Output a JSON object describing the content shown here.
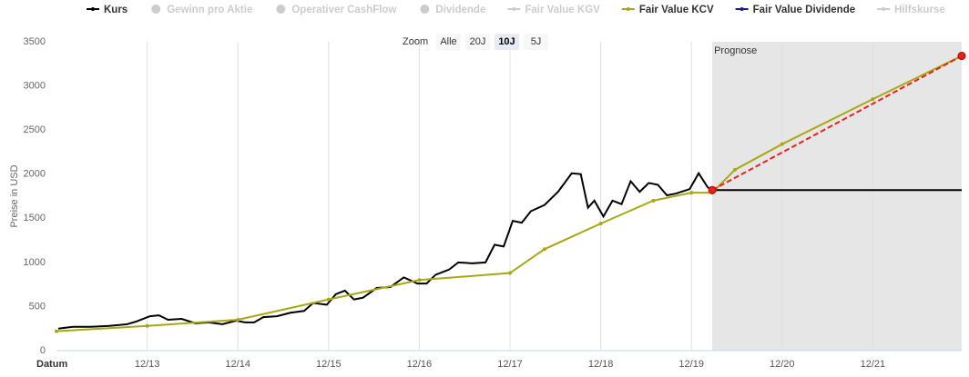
{
  "chart_data": {
    "type": "line",
    "y_axis_label": "Preise in USD",
    "x_axis_label": "Datum",
    "ylim": [
      0,
      3500
    ],
    "yticks": [
      0,
      500,
      1000,
      1500,
      2000,
      2500,
      3000,
      3500
    ],
    "xlim": [
      2012.92,
      2022.9
    ],
    "xticks": [
      {
        "value": 2013.92,
        "label": "12/13"
      },
      {
        "value": 2014.92,
        "label": "12/14"
      },
      {
        "value": 2015.92,
        "label": "12/15"
      },
      {
        "value": 2016.92,
        "label": "12/16"
      },
      {
        "value": 2017.92,
        "label": "12/17"
      },
      {
        "value": 2018.92,
        "label": "12/18"
      },
      {
        "value": 2019.92,
        "label": "12/19"
      },
      {
        "value": 2020.92,
        "label": "12/20"
      },
      {
        "value": 2021.92,
        "label": "12/21"
      }
    ],
    "grid": true,
    "legend": [
      {
        "name": "Kurs",
        "color": "#000000",
        "enabled": true,
        "symbol": "line"
      },
      {
        "name": "Gewinn pro Aktie",
        "color": "#cccccc",
        "enabled": false,
        "symbol": "dot"
      },
      {
        "name": "Operativer CashFlow",
        "color": "#cccccc",
        "enabled": false,
        "symbol": "dot"
      },
      {
        "name": "Dividende",
        "color": "#cccccc",
        "enabled": false,
        "symbol": "dot"
      },
      {
        "name": "Fair Value KGV",
        "color": "#cccccc",
        "enabled": false,
        "symbol": "line"
      },
      {
        "name": "Fair Value KCV",
        "color": "#a8a814",
        "enabled": true,
        "symbol": "line"
      },
      {
        "name": "Fair Value Dividende",
        "color": "#1a1a8c",
        "enabled": true,
        "symbol": "line"
      },
      {
        "name": "Hilfskurse",
        "color": "#cccccc",
        "enabled": false,
        "symbol": "line"
      }
    ],
    "zoom": {
      "label": "Zoom",
      "buttons": [
        "Alle",
        "20J",
        "10J",
        "5J"
      ],
      "selected": 2
    },
    "band": {
      "from": 2020.15,
      "to": 2022.9,
      "label": "Prognose",
      "color": "#e6e6e6"
    },
    "series": [
      {
        "name": "Kurs",
        "color": "#000000",
        "markers": false,
        "x": [
          2012.94,
          2013.1,
          2013.3,
          2013.5,
          2013.7,
          2013.8,
          2013.95,
          2014.05,
          2014.15,
          2014.3,
          2014.45,
          2014.6,
          2014.75,
          2014.9,
          2015.0,
          2015.1,
          2015.2,
          2015.35,
          2015.5,
          2015.65,
          2015.75,
          2015.9,
          2016.0,
          2016.1,
          2016.2,
          2016.3,
          2016.45,
          2016.6,
          2016.75,
          2016.9,
          2017.0,
          2017.1,
          2017.25,
          2017.35,
          2017.5,
          2017.65,
          2017.75,
          2017.85,
          2017.95,
          2018.05,
          2018.15,
          2018.3,
          2018.45,
          2018.6,
          2018.7,
          2018.78,
          2018.85,
          2018.95,
          2019.05,
          2019.15,
          2019.25,
          2019.35,
          2019.45,
          2019.55,
          2019.65,
          2019.75,
          2019.9,
          2020.0,
          2020.1,
          2020.15,
          2022.9
        ],
        "values": [
          250,
          270,
          270,
          280,
          300,
          330,
          390,
          400,
          350,
          360,
          310,
          320,
          300,
          340,
          320,
          320,
          380,
          390,
          430,
          450,
          540,
          520,
          640,
          680,
          580,
          600,
          710,
          720,
          830,
          760,
          760,
          860,
          920,
          1000,
          990,
          1000,
          1200,
          1180,
          1470,
          1450,
          1580,
          1650,
          1800,
          2010,
          2000,
          1620,
          1700,
          1520,
          1700,
          1660,
          1920,
          1800,
          1900,
          1880,
          1760,
          1780,
          1830,
          2010,
          1850,
          1820,
          1820
        ]
      },
      {
        "name": "Fair Value KCV",
        "color": "#a8a814",
        "markers": true,
        "x": [
          2012.92,
          2013.92,
          2014.92,
          2015.92,
          2016.92,
          2017.92,
          2018.3,
          2018.92,
          2019.5,
          2019.92,
          2020.15,
          2020.4,
          2020.92,
          2021.92,
          2022.9
        ],
        "values": [
          220,
          280,
          350,
          580,
          800,
          880,
          1150,
          1440,
          1700,
          1790,
          1790,
          2050,
          2340,
          2850,
          3340
        ]
      }
    ],
    "forecast": {
      "color": "#e8211b",
      "x": [
        2020.15,
        2022.9
      ],
      "values": [
        1820,
        3340
      ]
    }
  }
}
